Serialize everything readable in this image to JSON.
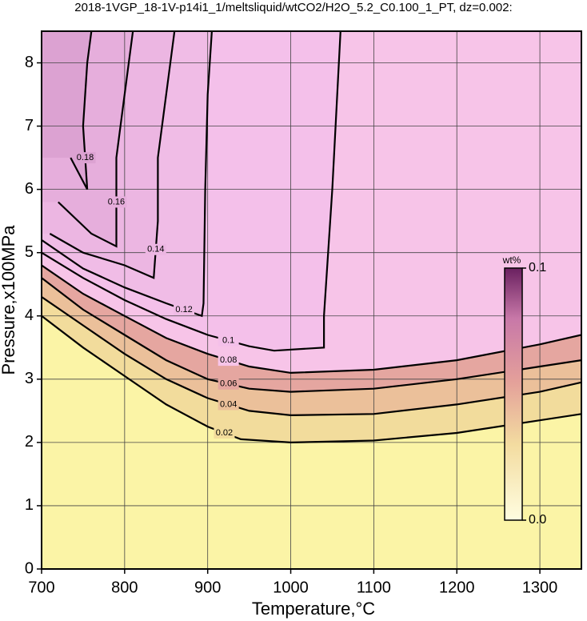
{
  "chart_data": {
    "type": "contour",
    "title": "2018-1VGP_18-1V-p14i1_1/meltsliquid/wtCO2/H2O_5.2_C0.100_1_PT, dz=0.002:",
    "x_label": "Temperature,°C",
    "y_label": "Pressure,x100MPa",
    "xlim": [
      700,
      1350
    ],
    "ylim": [
      0,
      8.5
    ],
    "xticks": [
      700,
      800,
      900,
      1000,
      1100,
      1200,
      1300
    ],
    "yticks": [
      0,
      1,
      2,
      3,
      4,
      5,
      6,
      7,
      8
    ],
    "grid": true,
    "background": "#fbf4a6",
    "series": [
      {
        "name": "0.02",
        "color": "#000000",
        "fill": "#f2dc9c",
        "x": [
          700,
          750,
          800,
          850,
          900,
          940,
          1000,
          1100,
          1200,
          1300,
          1350
        ],
        "y": [
          4.0,
          3.5,
          3.05,
          2.6,
          2.25,
          2.05,
          2.0,
          2.03,
          2.15,
          2.35,
          2.45
        ]
      },
      {
        "name": "0.04",
        "color": "#000000",
        "fill": "#ebc09a",
        "x": [
          700,
          750,
          800,
          850,
          900,
          950,
          1000,
          1100,
          1200,
          1300,
          1350
        ],
        "y": [
          4.3,
          3.85,
          3.4,
          3.0,
          2.7,
          2.5,
          2.43,
          2.45,
          2.6,
          2.8,
          2.95
        ]
      },
      {
        "name": "0.06",
        "color": "#000000",
        "fill": "#e5a6a0",
        "x": [
          700,
          750,
          800,
          850,
          900,
          950,
          1000,
          1100,
          1200,
          1300,
          1350
        ],
        "y": [
          4.6,
          4.1,
          3.7,
          3.3,
          3.0,
          2.85,
          2.8,
          2.85,
          3.0,
          3.2,
          3.3
        ]
      },
      {
        "name": "0.08",
        "color": "#000000",
        "fill": "#f7c4e8",
        "x": [
          700,
          750,
          800,
          850,
          900,
          950,
          1000,
          1100,
          1200,
          1300,
          1350
        ],
        "y": [
          4.8,
          4.35,
          4.0,
          3.65,
          3.4,
          3.2,
          3.1,
          3.15,
          3.3,
          3.55,
          3.7
        ]
      },
      {
        "name": "0.1",
        "color": "#000000",
        "fill": "#f4c0ea",
        "x": [
          700,
          750,
          800,
          850,
          900,
          950,
          980,
          1040,
          1040,
          1050,
          1060
        ],
        "y": [
          5.0,
          4.6,
          4.25,
          3.95,
          3.7,
          3.52,
          3.45,
          3.5,
          4.0,
          6.0,
          8.5
        ]
      },
      {
        "name": "0.12",
        "color": "#000000",
        "fill": "#f0bce6",
        "x": [
          700,
          750,
          800,
          850,
          893,
          895,
          897,
          900,
          905
        ],
        "y": [
          5.2,
          4.75,
          4.45,
          4.2,
          4.0,
          4.2,
          6.0,
          7.5,
          8.5
        ]
      },
      {
        "name": "0.14",
        "color": "#000000",
        "fill": "#ecb6e2",
        "x": [
          710,
          750,
          800,
          835,
          840,
          840,
          850,
          860
        ],
        "y": [
          5.3,
          5.0,
          4.8,
          4.6,
          5.5,
          6.5,
          7.5,
          8.5
        ]
      },
      {
        "name": "0.16",
        "color": "#000000",
        "fill": "#e6aedc",
        "x": [
          720,
          760,
          790,
          790,
          800,
          810
        ],
        "y": [
          5.8,
          5.3,
          5.1,
          6.5,
          7.5,
          8.5
        ]
      },
      {
        "name": "0.18",
        "color": "#000000",
        "fill": "#dca2d2",
        "x": [
          735,
          755,
          750,
          755,
          760
        ],
        "y": [
          6.5,
          6.0,
          7.0,
          8.0,
          8.5
        ]
      }
    ],
    "colorbar": {
      "label": "wt%",
      "range": [
        0,
        0.1
      ],
      "ticks": [
        {
          "value": 0,
          "label": "0.0"
        },
        0.1
      ]
    }
  }
}
